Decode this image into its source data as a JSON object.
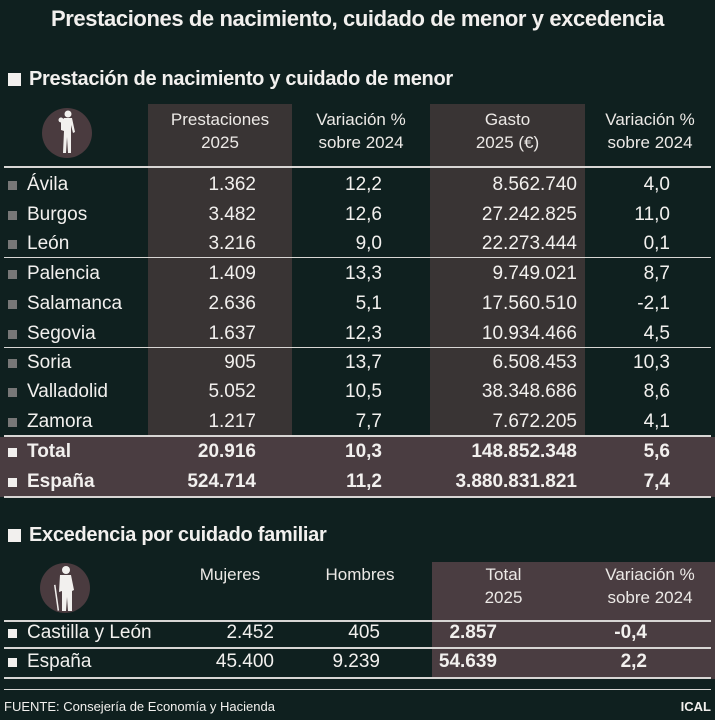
{
  "title": "Prestaciones de nacimiento, cuidado de menor y excedencia",
  "section1": {
    "heading": "Prestación de nacimiento y cuidado de menor",
    "icon": "parent-carrying-child-icon",
    "columns": [
      "Prestaciones 2025",
      "Variación % sobre 2024",
      "Gasto 2025 (€)",
      "Variación % sobre 2024"
    ],
    "col_lines": [
      [
        "Prestaciones",
        "2025"
      ],
      [
        "Variación %",
        "sobre 2024"
      ],
      [
        "Gasto",
        "2025 (€)"
      ],
      [
        "Variación %",
        "sobre 2024"
      ]
    ],
    "rows": [
      {
        "name": "Ávila",
        "prest": "1.362",
        "var1": "12,2",
        "gasto": "8.562.740",
        "var2": "4,0"
      },
      {
        "name": "Burgos",
        "prest": "3.482",
        "var1": "12,6",
        "gasto": "27.242.825",
        "var2": "11,0"
      },
      {
        "name": "León",
        "prest": "3.216",
        "var1": "9,0",
        "gasto": "22.273.444",
        "var2": "0,1"
      },
      {
        "name": "Palencia",
        "prest": "1.409",
        "var1": "13,3",
        "gasto": "9.749.021",
        "var2": "8,7"
      },
      {
        "name": "Salamanca",
        "prest": "2.636",
        "var1": "5,1",
        "gasto": "17.560.510",
        "var2": "-2,1"
      },
      {
        "name": "Segovia",
        "prest": "1.637",
        "var1": "12,3",
        "gasto": "10.934.466",
        "var2": "4,5"
      },
      {
        "name": "Soria",
        "prest": "905",
        "var1": "13,7",
        "gasto": "6.508.453",
        "var2": "10,3"
      },
      {
        "name": "Valladolid",
        "prest": "5.052",
        "var1": "10,5",
        "gasto": "38.348.686",
        "var2": "8,6"
      },
      {
        "name": "Zamora",
        "prest": "1.217",
        "var1": "7,7",
        "gasto": "7.672.205",
        "var2": "4,1"
      }
    ],
    "totals": [
      {
        "name": "Total",
        "prest": "20.916",
        "var1": "10,3",
        "gasto": "148.852.348",
        "var2": "5,6"
      },
      {
        "name": "España",
        "prest": "524.714",
        "var1": "11,2",
        "gasto": "3.880.831.821",
        "var2": "7,4"
      }
    ]
  },
  "section2": {
    "heading": "Excedencia por cuidado familiar",
    "icon": "elderly-person-with-cane-icon",
    "col_lines": [
      [
        "Mujeres",
        ""
      ],
      [
        "Hombres",
        ""
      ],
      [
        "Total",
        "2025"
      ],
      [
        "Variación %",
        "sobre 2024"
      ]
    ],
    "rows": [
      {
        "name": "Castilla y León",
        "mujeres": "2.452",
        "hombres": "405",
        "total": "2.857",
        "var": "-0,4"
      },
      {
        "name": "España",
        "mujeres": "45.400",
        "hombres": "9.239",
        "total": "54.639",
        "var": "2,2"
      }
    ]
  },
  "footer": {
    "source": "FUENTE: Consejería de Economía y Hacienda",
    "credit": "ICAL"
  },
  "colors": {
    "background": "#0f201f",
    "shade": "#393434",
    "highlight": "#4a3d41"
  }
}
